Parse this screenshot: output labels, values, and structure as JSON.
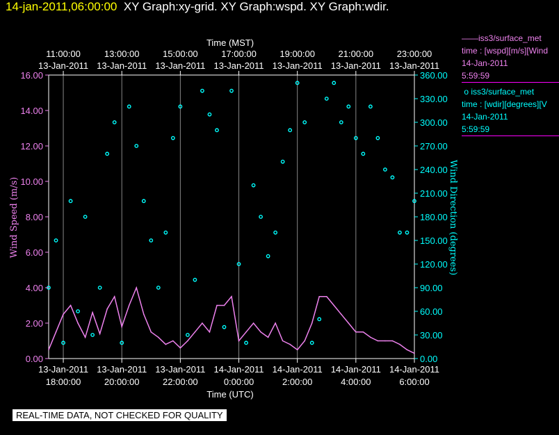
{
  "header": {
    "timestamp": "14-jan-2011,06:00:00",
    "graphs": "XY Graph:xy-grid.  XY Graph:wspd.  XY Graph:wdir."
  },
  "legend": {
    "wspd": {
      "name": "iss3/surface_met",
      "var": "time : [wspd][m/s][Wind",
      "date": "14-Jan-2011",
      "time": "5:59:59",
      "color": "#ee82ee"
    },
    "wdir": {
      "name": "iss3/surface_met",
      "var": "time : [wdir][degrees][V",
      "date": "14-Jan-2011",
      "time": "5:59:59",
      "color": "#00ffff"
    }
  },
  "notice": "REAL-TIME DATA, NOT CHECKED FOR QUALITY",
  "chart_data": {
    "type": "line",
    "top_axis": {
      "label": "Time (MST)",
      "ticks": [
        {
          "time": "11:00:00",
          "date": "13-Jan-2011"
        },
        {
          "time": "13:00:00",
          "date": "13-Jan-2011"
        },
        {
          "time": "15:00:00",
          "date": "13-Jan-2011"
        },
        {
          "time": "17:00:00",
          "date": "13-Jan-2011"
        },
        {
          "time": "19:00:00",
          "date": "13-Jan-2011"
        },
        {
          "time": "21:00:00",
          "date": "13-Jan-2011"
        },
        {
          "time": "23:00:00",
          "date": "13-Jan-2011"
        }
      ]
    },
    "bottom_axis": {
      "label": "Time (UTC)",
      "ticks": [
        {
          "date": "13-Jan-2011",
          "time": "18:00:00"
        },
        {
          "date": "13-Jan-2011",
          "time": "20:00:00"
        },
        {
          "date": "13-Jan-2011",
          "time": "22:00:00"
        },
        {
          "date": "14-Jan-2011",
          "time": "0:00:00"
        },
        {
          "date": "14-Jan-2011",
          "time": "2:00:00"
        },
        {
          "date": "14-Jan-2011",
          "time": "4:00:00"
        },
        {
          "date": "14-Jan-2011",
          "time": "6:00:00"
        }
      ]
    },
    "x_hours_utc": [
      17.5,
      17.75,
      18.0,
      18.25,
      18.5,
      18.75,
      19.0,
      19.25,
      19.5,
      19.75,
      20.0,
      20.25,
      20.5,
      20.75,
      21.0,
      21.25,
      21.5,
      21.75,
      22.0,
      22.25,
      22.5,
      22.75,
      23.0,
      23.25,
      23.5,
      23.75,
      24.0,
      24.25,
      24.5,
      24.75,
      25.0,
      25.25,
      25.5,
      25.75,
      26.0,
      26.25,
      26.5,
      26.75,
      27.0,
      27.25,
      27.5,
      27.75,
      28.0,
      28.25,
      28.5,
      28.75,
      29.0,
      29.25,
      29.5,
      29.75,
      30.0
    ],
    "xlim_hours_utc": [
      17.5,
      30.0
    ],
    "y_left": {
      "label": "Wind Speed (m/s)",
      "lim": [
        0,
        16
      ],
      "ticks": [
        "0.00",
        "2.00",
        "4.00",
        "6.00",
        "8.00",
        "10.00",
        "12.00",
        "14.00",
        "16.00"
      ]
    },
    "y_right": {
      "label": "Wind Direction (degrees)",
      "lim": [
        0,
        360
      ],
      "ticks": [
        "0.00",
        "30.00",
        "60.00",
        "90.00",
        "120.00",
        "150.00",
        "180.00",
        "210.00",
        "240.00",
        "270.00",
        "300.00",
        "330.00",
        "360.00"
      ]
    },
    "series": [
      {
        "name": "iss3/surface_met",
        "axis": "left",
        "style": "line",
        "color": "#ee82ee",
        "values": [
          0.5,
          1.5,
          2.5,
          3.0,
          2.0,
          1.2,
          2.6,
          1.4,
          2.8,
          3.5,
          1.8,
          3.0,
          4.0,
          2.5,
          1.5,
          1.2,
          0.8,
          1.0,
          0.6,
          1.0,
          1.5,
          2.0,
          1.5,
          3.0,
          3.0,
          3.5,
          1.0,
          1.5,
          2.0,
          1.5,
          1.2,
          2.0,
          1.0,
          0.8,
          0.5,
          1.0,
          2.0,
          3.5,
          3.5,
          3.0,
          2.5,
          2.0,
          1.5,
          1.5,
          1.2,
          1.0,
          1.0,
          1.0,
          0.8,
          0.5,
          0.3
        ]
      },
      {
        "name": "iss3/surface_met",
        "axis": "right",
        "style": "scatter",
        "color": "#00ffff",
        "values": [
          90,
          150,
          20,
          200,
          60,
          180,
          30,
          90,
          260,
          300,
          20,
          320,
          270,
          200,
          150,
          90,
          160,
          280,
          320,
          30,
          100,
          340,
          310,
          290,
          40,
          340,
          120,
          20,
          220,
          180,
          130,
          160,
          250,
          290,
          350,
          300,
          20,
          50,
          330,
          350,
          300,
          320,
          280,
          260,
          320,
          280,
          240,
          230,
          160,
          160,
          200
        ]
      }
    ]
  }
}
